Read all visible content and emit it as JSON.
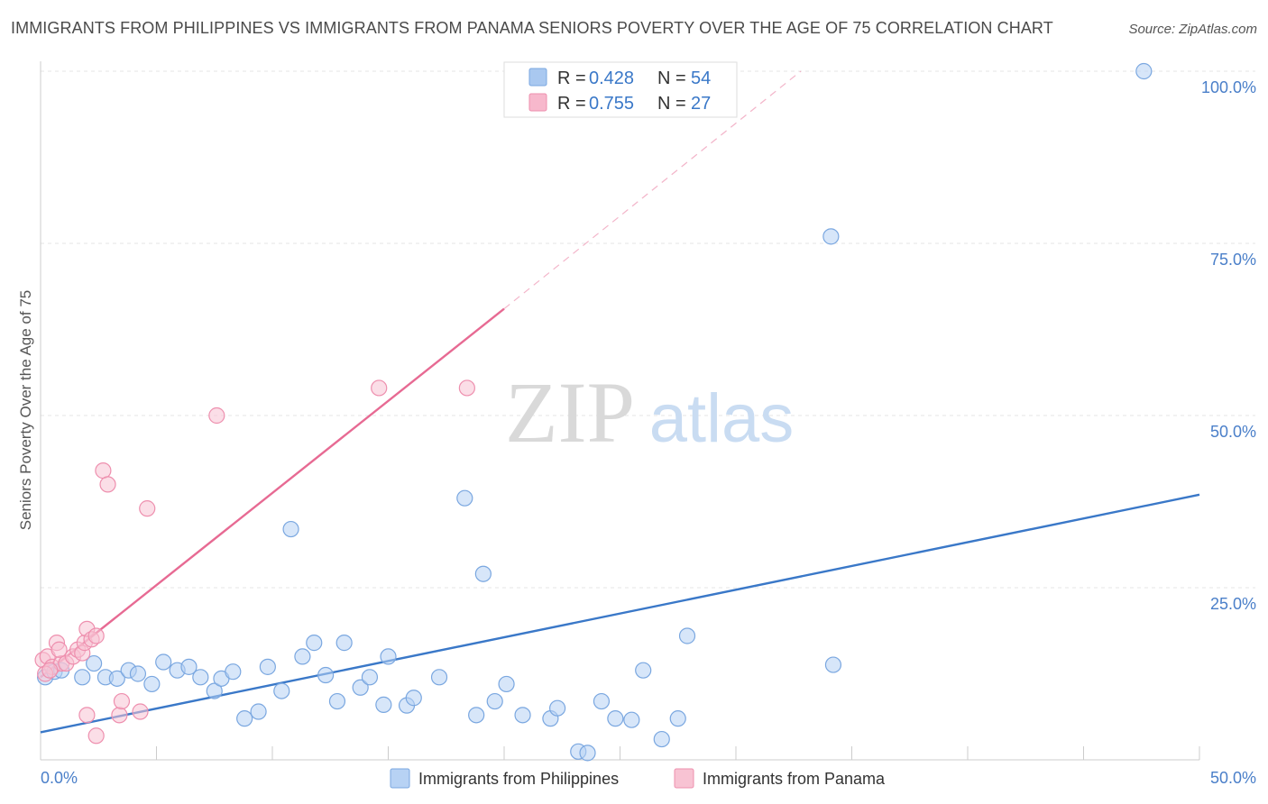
{
  "title": "IMMIGRANTS FROM PHILIPPINES VS IMMIGRANTS FROM PANAMA SENIORS POVERTY OVER THE AGE OF 75 CORRELATION CHART",
  "source": "Source: ZipAtlas.com",
  "watermark": {
    "zip": "ZIP",
    "atlas": "atlas"
  },
  "legend_box": {
    "rows": [
      {
        "r_label": "R =",
        "r_value": "0.428",
        "n_label": "N =",
        "n_value": "54",
        "color": "#a9c8f0",
        "stroke": "#7aa7e0"
      },
      {
        "r_label": "R =",
        "r_value": "0.755",
        "n_label": "N =",
        "n_value": "27",
        "color": "#f7b8cc",
        "stroke": "#ee8fae"
      }
    ]
  },
  "bottom_legend": [
    {
      "label": "Immigrants from Philippines",
      "color": "#b7d2f4",
      "stroke": "#7aa7e0"
    },
    {
      "label": "Immigrants from Panama",
      "color": "#f8c3d3",
      "stroke": "#ee8fae"
    }
  ],
  "chart_data": {
    "type": "scatter",
    "title": "IMMIGRANTS FROM PHILIPPINES VS IMMIGRANTS FROM PANAMA SENIORS POVERTY OVER THE AGE OF 75 CORRELATION CHART",
    "xlabel": "",
    "ylabel": "Seniors Poverty Over the Age of 75",
    "xlim": [
      0,
      50
    ],
    "ylim": [
      0,
      100
    ],
    "x_tick_labels": [
      "0.0%",
      "50.0%"
    ],
    "y_ticks": [
      25,
      50,
      75,
      100
    ],
    "y_tick_labels": [
      "25.0%",
      "50.0%",
      "75.0%",
      "100.0%"
    ],
    "grid": true,
    "series": [
      {
        "name": "Immigrants from Philippines",
        "color": "#3a78c8",
        "fill": "#b7d2f4",
        "points": [
          [
            0.2,
            12.0
          ],
          [
            0.6,
            12.8
          ],
          [
            0.9,
            13.0
          ],
          [
            1.8,
            12.0
          ],
          [
            2.3,
            14.0
          ],
          [
            2.8,
            12.0
          ],
          [
            3.3,
            11.8
          ],
          [
            3.8,
            13.0
          ],
          [
            4.2,
            12.5
          ],
          [
            4.8,
            11.0
          ],
          [
            5.3,
            14.2
          ],
          [
            5.9,
            13.0
          ],
          [
            6.4,
            13.5
          ],
          [
            6.9,
            12.0
          ],
          [
            7.5,
            10.0
          ],
          [
            7.8,
            11.8
          ],
          [
            8.3,
            12.8
          ],
          [
            8.8,
            6.0
          ],
          [
            9.4,
            7.0
          ],
          [
            9.8,
            13.5
          ],
          [
            10.4,
            10.0
          ],
          [
            10.8,
            33.5
          ],
          [
            11.3,
            15.0
          ],
          [
            11.8,
            17.0
          ],
          [
            12.3,
            12.3
          ],
          [
            12.8,
            8.5
          ],
          [
            13.1,
            17.0
          ],
          [
            13.8,
            10.5
          ],
          [
            14.2,
            12.0
          ],
          [
            14.8,
            8.0
          ],
          [
            15.0,
            15.0
          ],
          [
            15.8,
            7.9
          ],
          [
            16.1,
            9.0
          ],
          [
            17.2,
            12.0
          ],
          [
            18.3,
            38.0
          ],
          [
            18.8,
            6.5
          ],
          [
            19.1,
            27.0
          ],
          [
            19.6,
            8.5
          ],
          [
            20.1,
            11.0
          ],
          [
            20.8,
            6.5
          ],
          [
            22.0,
            6.0
          ],
          [
            22.3,
            7.5
          ],
          [
            23.2,
            1.2
          ],
          [
            23.6,
            1.0
          ],
          [
            24.2,
            8.5
          ],
          [
            24.8,
            6.0
          ],
          [
            25.5,
            5.8
          ],
          [
            26.0,
            13.0
          ],
          [
            26.8,
            3.0
          ],
          [
            27.5,
            6.0
          ],
          [
            27.9,
            18.0
          ],
          [
            34.1,
            76.0
          ],
          [
            34.2,
            13.8
          ],
          [
            47.6,
            100.0
          ]
        ]
      },
      {
        "name": "Immigrants from Panama",
        "color": "#e76a93",
        "fill": "#f8c3d3",
        "points": [
          [
            0.1,
            14.5
          ],
          [
            0.3,
            15.0
          ],
          [
            0.5,
            13.5
          ],
          [
            0.7,
            17.0
          ],
          [
            0.9,
            14.0
          ],
          [
            1.1,
            14.0
          ],
          [
            1.4,
            15.0
          ],
          [
            1.6,
            16.0
          ],
          [
            1.8,
            15.5
          ],
          [
            1.9,
            17.0
          ],
          [
            2.0,
            19.0
          ],
          [
            2.2,
            17.5
          ],
          [
            2.4,
            18.0
          ],
          [
            2.7,
            42.0
          ],
          [
            2.9,
            40.0
          ],
          [
            2.0,
            6.5
          ],
          [
            2.4,
            3.5
          ],
          [
            3.4,
            6.5
          ],
          [
            3.5,
            8.5
          ],
          [
            4.3,
            7.0
          ],
          [
            4.6,
            36.5
          ],
          [
            7.6,
            50.0
          ],
          [
            14.6,
            54.0
          ],
          [
            18.4,
            54.0
          ],
          [
            0.2,
            12.5
          ],
          [
            0.4,
            13.0
          ],
          [
            0.8,
            16.0
          ]
        ]
      }
    ],
    "trendlines": [
      {
        "series": "Immigrants from Philippines",
        "x": [
          0,
          50
        ],
        "y": [
          4.0,
          38.5
        ],
        "style": "solid"
      },
      {
        "series": "Immigrants from Panama",
        "x": [
          0,
          20.0
        ],
        "y": [
          12.0,
          65.5
        ],
        "style": "solid"
      },
      {
        "series": "Immigrants from Panama",
        "x": [
          20.0,
          32.8
        ],
        "y": [
          65.5,
          100.0
        ],
        "style": "dashed"
      }
    ]
  }
}
